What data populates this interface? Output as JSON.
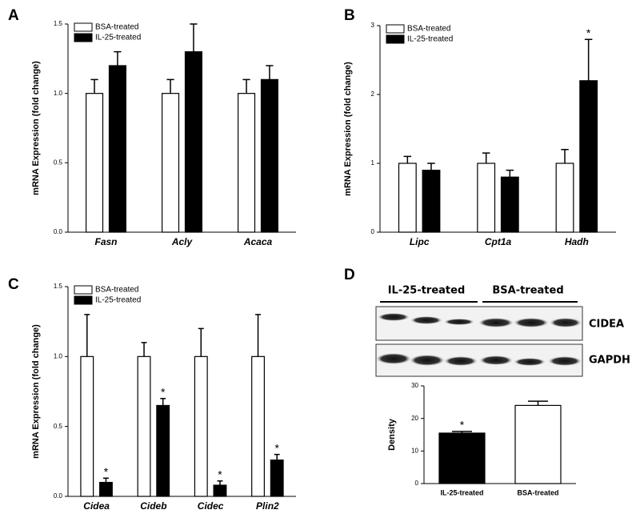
{
  "chart_data": [
    {
      "type": "bar",
      "panel_label": "A",
      "y_label": "mRNA Expression (fold change)",
      "categories": [
        "Fasn",
        "Acly",
        "Acaca"
      ],
      "series": [
        {
          "name": "BSA-treated",
          "color": "#ffffff",
          "values": [
            1,
            1,
            1
          ],
          "errors": [
            0.1,
            0.1,
            0.1
          ]
        },
        {
          "name": "IL-25-treated",
          "color": "#000000",
          "values": [
            1.2,
            1.3,
            1.1
          ],
          "errors": [
            0.1,
            0.2,
            0.1
          ]
        }
      ],
      "ylim": [
        0,
        1.5
      ],
      "yticks": [
        {
          "value": 0,
          "label": "0.0"
        },
        0.5,
        {
          "value": 1,
          "label": "1.0"
        },
        1.5
      ],
      "legend": "upper left",
      "grid": false
    },
    {
      "type": "bar",
      "panel_label": "B",
      "y_label": "mRNA Expression (fold change)",
      "categories": [
        "Lipc",
        "Cpt1a",
        "Hadh"
      ],
      "series": [
        {
          "name": "BSA-treated",
          "color": "#ffffff",
          "values": [
            1,
            1,
            1
          ],
          "errors": [
            0.1,
            0.15,
            0.2
          ]
        },
        {
          "name": "IL-25-treated",
          "color": "#000000",
          "values": [
            0.9,
            0.8,
            2.2
          ],
          "errors": [
            0.1,
            0.1,
            0.6
          ],
          "annotations": [
            null,
            null,
            "*"
          ]
        }
      ],
      "ylim": [
        0,
        3
      ],
      "yticks": [
        0,
        1,
        2,
        3
      ],
      "legend": "upper left",
      "grid": false
    },
    {
      "type": "bar",
      "panel_label": "C",
      "y_label": "mRNA Expression (fold change)",
      "categories": [
        "Cidea",
        "Cideb",
        "Cidec",
        "Plin2"
      ],
      "series": [
        {
          "name": "BSA-treated",
          "color": "#ffffff",
          "values": [
            1,
            1,
            1,
            1
          ],
          "errors": [
            0.3,
            0.1,
            0.2,
            0.3
          ]
        },
        {
          "name": "IL-25-treated",
          "color": "#000000",
          "values": [
            0.1,
            0.65,
            0.08,
            0.26
          ],
          "errors": [
            0.03,
            0.05,
            0.03,
            0.04
          ],
          "annotations": [
            "*",
            "*",
            "*",
            "*"
          ]
        }
      ],
      "ylim": [
        0,
        1.5
      ],
      "yticks": [
        {
          "value": 0,
          "label": "0.0"
        },
        0.5,
        {
          "value": 1,
          "label": "1.0"
        },
        1.5
      ],
      "legend": "upper left",
      "grid": false
    },
    {
      "type": "bar",
      "panel_label": "D",
      "y_label": "Density",
      "categories": [
        "IL-25-treated",
        "BSA-treated"
      ],
      "values": [
        15.5,
        24
      ],
      "errors": [
        0.5,
        1.3
      ],
      "colors": [
        "#000000",
        "#ffffff"
      ],
      "annotations": [
        "*",
        null
      ],
      "ylim": [
        0,
        30
      ],
      "yticks": [
        0,
        10,
        20,
        30
      ],
      "grid": false
    }
  ],
  "blot": {
    "groups": [
      "IL-25-treated",
      "BSA-treated"
    ],
    "proteins": [
      "CIDEA",
      "GAPDH"
    ]
  }
}
